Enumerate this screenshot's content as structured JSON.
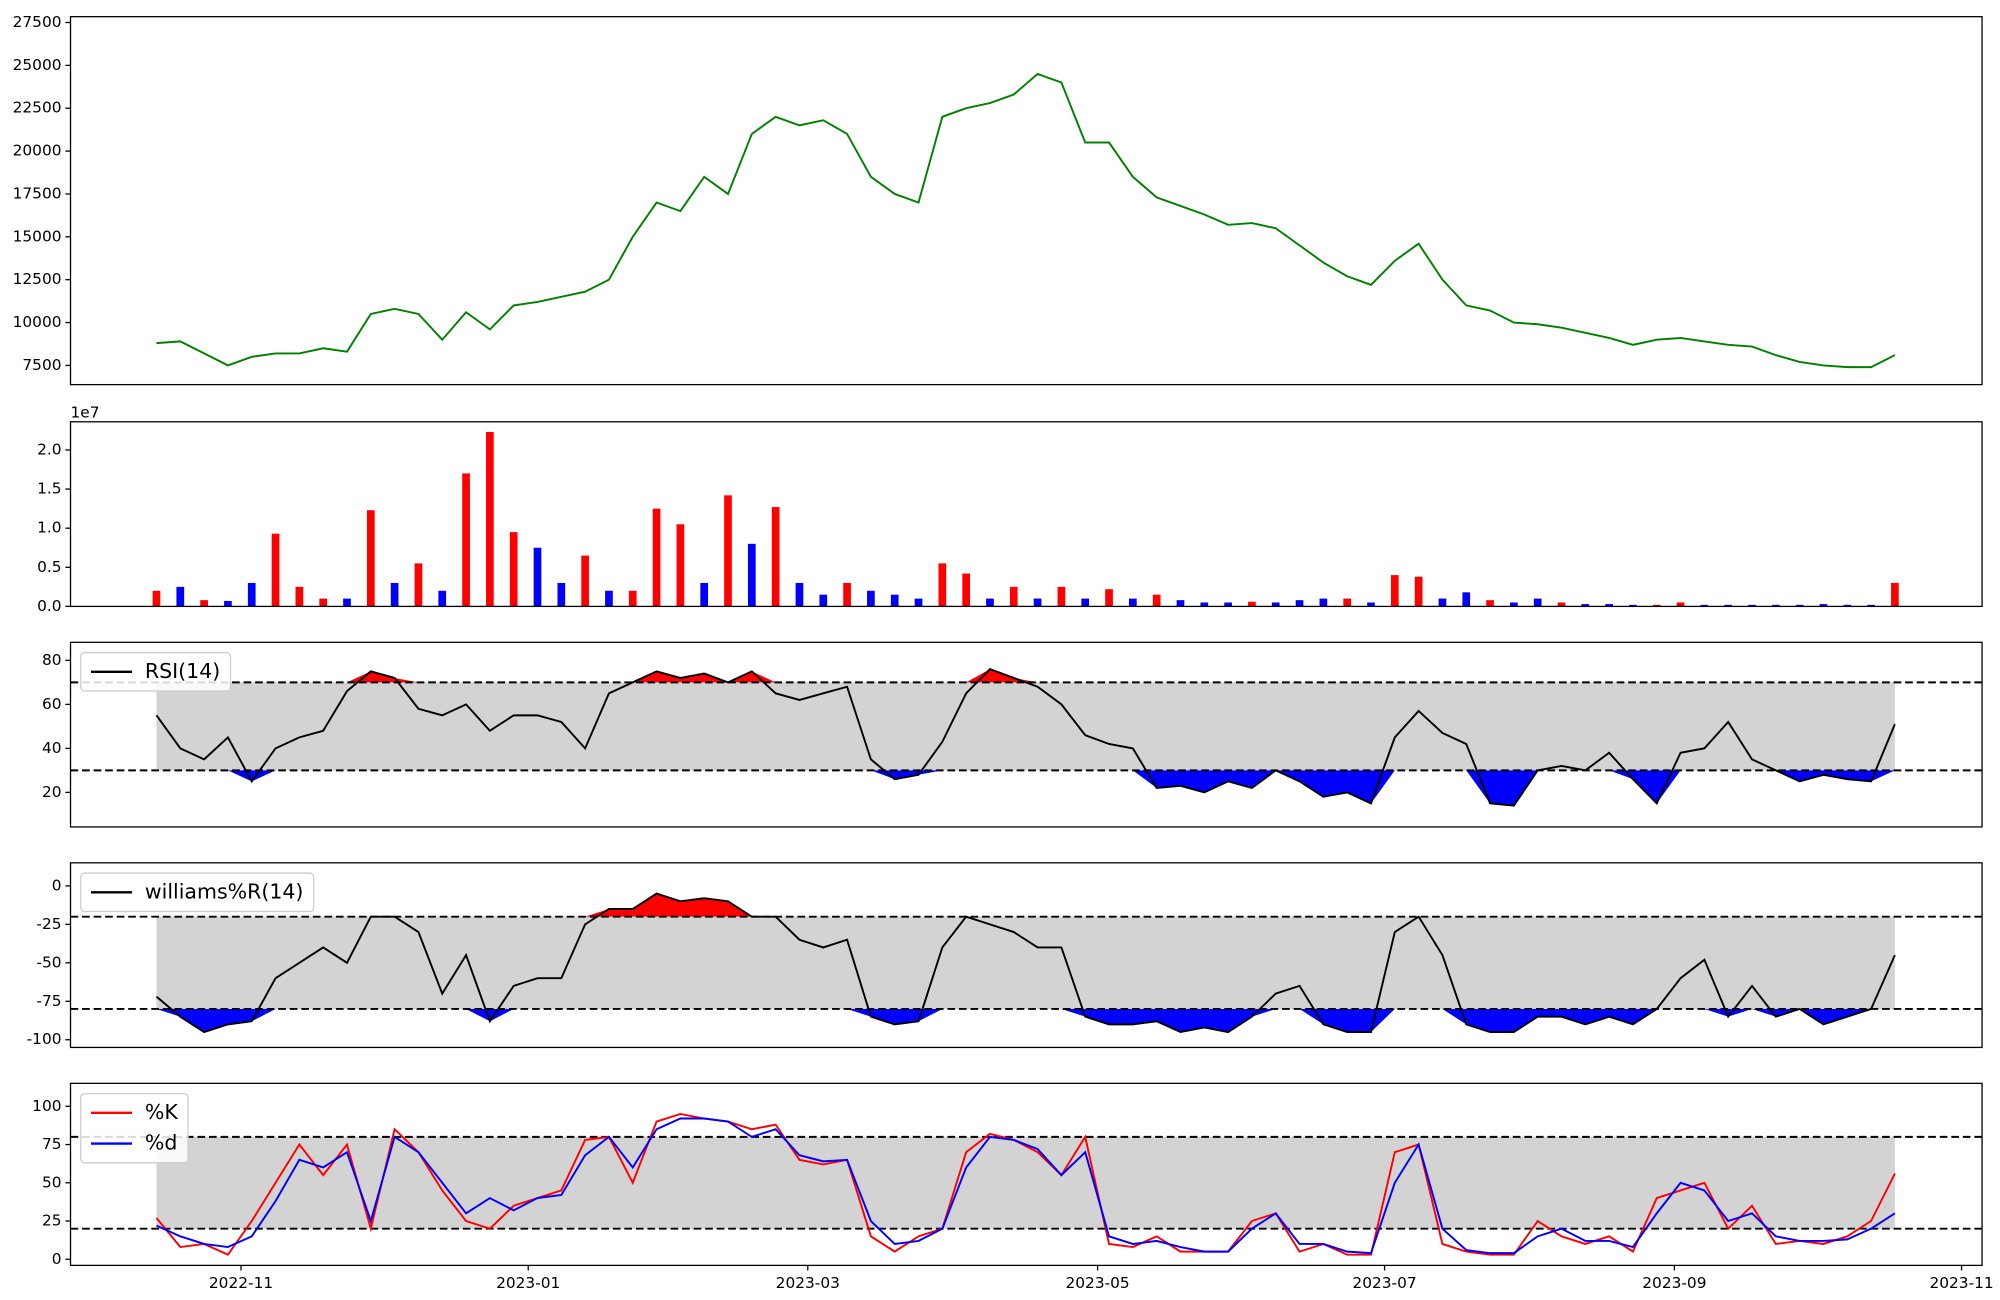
{
  "chart_data": [
    {
      "type": "line",
      "ylim": [
        6380,
        27840
      ],
      "yticks": [
        7500,
        10000,
        12500,
        15000,
        17500,
        20000,
        22500,
        25000,
        27500
      ],
      "series": [
        {
          "color": "green",
          "values": [
            8800,
            8900,
            8200,
            7500,
            8000,
            8200,
            8200,
            8500,
            8300,
            10500,
            10800,
            10500,
            9000,
            10600,
            9600,
            11000,
            11200,
            11500,
            11800,
            12500,
            15000,
            17000,
            16500,
            18500,
            17500,
            21000,
            22000,
            21500,
            21800,
            21000,
            18500,
            17500,
            17000,
            22000,
            22500,
            22800,
            23300,
            24500,
            24000,
            20500,
            20500,
            18500,
            17300,
            16800,
            16300,
            15700,
            15800,
            15500,
            14500,
            13500,
            12700,
            12200,
            13600,
            14600,
            12500,
            11000,
            10700,
            10000,
            9900,
            9700,
            9400,
            9100,
            8700,
            9000,
            9100,
            8900,
            8700,
            8600,
            8100,
            7700,
            7500,
            7400,
            7400,
            8100
          ]
        }
      ]
    },
    {
      "type": "bar",
      "ylim": [
        0,
        2.36
      ],
      "offset_label": "1e7",
      "yticks": [
        {
          "value": 0,
          "label": "0.0"
        },
        {
          "value": 0.5,
          "label": "0.5"
        },
        {
          "value": 1,
          "label": "1.0"
        },
        {
          "value": 1.5,
          "label": "1.5"
        },
        {
          "value": 2,
          "label": "2.0"
        }
      ],
      "values": [
        0.2,
        0.25,
        0.08,
        0.07,
        0.3,
        0.93,
        0.25,
        0.1,
        0.1,
        1.23,
        0.3,
        0.55,
        0.2,
        1.7,
        2.23,
        0.95,
        0.75,
        0.3,
        0.65,
        0.2,
        0.2,
        1.25,
        1.05,
        0.3,
        1.42,
        0.8,
        1.27,
        0.3,
        0.15,
        0.3,
        0.2,
        0.15,
        0.1,
        0.55,
        0.42,
        0.1,
        0.25,
        0.1,
        0.25,
        0.1,
        0.22,
        0.1,
        0.15,
        0.08,
        0.05,
        0.05,
        0.06,
        0.05,
        0.08,
        0.1,
        0.1,
        0.05,
        0.4,
        0.38,
        0.1,
        0.18,
        0.08,
        0.05,
        0.1,
        0.05,
        0.03,
        0.03,
        0.02,
        0.02,
        0.05,
        0.02,
        0.02,
        0.02,
        0.02,
        0.02,
        0.03,
        0.02,
        0.02,
        0.3
      ],
      "colors": [
        "red",
        "blue",
        "red",
        "blue",
        "blue",
        "red",
        "red",
        "red",
        "blue",
        "red",
        "blue",
        "red",
        "blue",
        "red",
        "red",
        "red",
        "blue",
        "blue",
        "red",
        "blue",
        "red",
        "red",
        "red",
        "blue",
        "red",
        "blue",
        "red",
        "blue",
        "blue",
        "red",
        "blue",
        "blue",
        "blue",
        "red",
        "red",
        "blue",
        "red",
        "blue",
        "red",
        "blue",
        "red",
        "blue",
        "red",
        "blue",
        "blue",
        "blue",
        "red",
        "blue",
        "blue",
        "blue",
        "red",
        "blue",
        "red",
        "red",
        "blue",
        "blue",
        "red",
        "blue",
        "blue",
        "red",
        "blue",
        "blue",
        "blue",
        "red",
        "red",
        "blue",
        "blue",
        "blue",
        "blue",
        "blue",
        "blue",
        "blue",
        "blue",
        "red"
      ]
    },
    {
      "type": "oscillator",
      "ylim": [
        4.3,
        88.2
      ],
      "yticks": [
        20,
        40,
        60,
        80
      ],
      "hlines": [
        70,
        30
      ],
      "band_color": "lightgray",
      "upper_fill": "red",
      "lower_fill": "blue",
      "legend": "upper left",
      "series": [
        {
          "name": "RSI(14)",
          "color": "black",
          "values": [
            55,
            40,
            35,
            45,
            25,
            40,
            45,
            48,
            66,
            75,
            72,
            58,
            55,
            60,
            48,
            55,
            55,
            52,
            40,
            65,
            70,
            75,
            72,
            74,
            70,
            75,
            65,
            62,
            65,
            68,
            35,
            26,
            28,
            43,
            65,
            76,
            72,
            68,
            60,
            46,
            42,
            40,
            22,
            23,
            20,
            25,
            22,
            30,
            25,
            18,
            20,
            15,
            45,
            57,
            47,
            42,
            15,
            14,
            30,
            32,
            30,
            38,
            26,
            15,
            38,
            40,
            52,
            35,
            30,
            25,
            28,
            26,
            25,
            51
          ]
        }
      ]
    },
    {
      "type": "oscillator",
      "ylim": [
        -105,
        15
      ],
      "yticks": [
        0,
        -25,
        -50,
        -75,
        -100
      ],
      "hlines": [
        -20,
        -80
      ],
      "band_color": "lightgray",
      "upper_fill": "red",
      "lower_fill": "blue",
      "legend": "upper left",
      "series": [
        {
          "name": "williams%R(14)",
          "color": "black",
          "values": [
            -72,
            -85,
            -95,
            -90,
            -88,
            -60,
            -50,
            -40,
            -50,
            -20,
            -20,
            -30,
            -70,
            -45,
            -88,
            -65,
            -60,
            -60,
            -25,
            -15,
            -15,
            -5,
            -10,
            -8,
            -10,
            -20,
            -20,
            -35,
            -40,
            -35,
            -85,
            -90,
            -88,
            -40,
            -20,
            -25,
            -30,
            -40,
            -40,
            -85,
            -90,
            -90,
            -88,
            -95,
            -92,
            -95,
            -85,
            -70,
            -65,
            -90,
            -95,
            -95,
            -30,
            -20,
            -45,
            -90,
            -95,
            -95,
            -85,
            -85,
            -90,
            -85,
            -90,
            -80,
            -60,
            -48,
            -85,
            -65,
            -85,
            -80,
            -90,
            -85,
            -80,
            -45
          ]
        }
      ]
    },
    {
      "type": "oscillator",
      "ylim": [
        -4,
        115
      ],
      "yticks": [
        0,
        25,
        50,
        75,
        100
      ],
      "hlines": [
        80,
        20
      ],
      "band_color": "lightgray",
      "legend": "upper left",
      "xlim": [
        -3.61,
        76.66
      ],
      "xticks": [
        {
          "value": 3.55,
          "label": "2022-11"
        },
        {
          "value": 15.61,
          "label": "2023-01"
        },
        {
          "value": 27.35,
          "label": "2023-03"
        },
        {
          "value": 39.52,
          "label": "2023-05"
        },
        {
          "value": 51.57,
          "label": "2023-07"
        },
        {
          "value": 63.74,
          "label": "2023-09"
        },
        {
          "value": 75.8,
          "label": "2023-11"
        }
      ],
      "series": [
        {
          "name": "%K",
          "color": "red",
          "values": [
            27,
            8,
            10,
            3,
            25,
            50,
            75,
            55,
            75,
            20,
            85,
            70,
            45,
            25,
            20,
            35,
            40,
            45,
            78,
            80,
            50,
            90,
            95,
            92,
            90,
            85,
            88,
            65,
            62,
            65,
            15,
            5,
            15,
            20,
            70,
            82,
            78,
            70,
            55,
            80,
            10,
            8,
            15,
            5,
            5,
            5,
            25,
            30,
            5,
            10,
            3,
            3,
            70,
            75,
            10,
            5,
            3,
            3,
            25,
            15,
            10,
            15,
            5,
            40,
            45,
            50,
            20,
            35,
            10,
            12,
            10,
            15,
            25,
            56
          ]
        },
        {
          "name": "%d",
          "color": "blue",
          "values": [
            22,
            15,
            10,
            8,
            15,
            38,
            65,
            60,
            70,
            25,
            80,
            70,
            50,
            30,
            40,
            32,
            40,
            42,
            68,
            80,
            60,
            85,
            92,
            92,
            90,
            80,
            85,
            68,
            64,
            65,
            25,
            10,
            12,
            20,
            60,
            80,
            78,
            72,
            55,
            70,
            15,
            10,
            12,
            8,
            5,
            5,
            20,
            30,
            10,
            10,
            5,
            4,
            50,
            75,
            20,
            6,
            4,
            4,
            15,
            20,
            12,
            12,
            8,
            30,
            50,
            45,
            25,
            30,
            15,
            12,
            12,
            13,
            20,
            30
          ]
        }
      ]
    }
  ]
}
